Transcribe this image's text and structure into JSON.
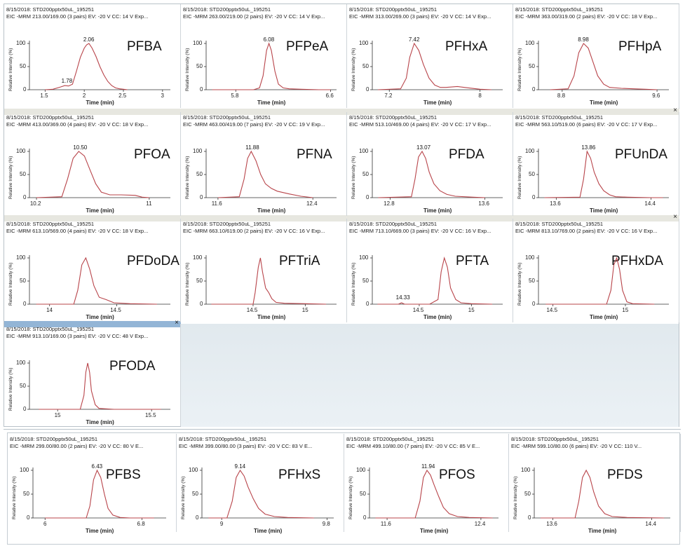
{
  "colors": {
    "trace": "#b8444a",
    "axis": "#333333",
    "close_bar_gray": "#e7e7e0",
    "close_bar_blue": "#93b5d6",
    "empty_area": "#e4ecf1"
  },
  "close_symbol": "×",
  "axis_labels": {
    "y": "Relative Intensity (%)",
    "x": "Time (min)"
  },
  "chart_data": [
    {
      "type": "line",
      "name": "PFBA",
      "header_line1": "8/15/2018: STD200pptx50uL_195251",
      "header_line2": "EIC -MRM 213.00/169.00 (3 pairs) EV: -20 V CC: 14 V Exp...",
      "xlim": [
        1.3,
        3.1
      ],
      "xticks": [
        1.5,
        2,
        2.5,
        3
      ],
      "xtick_labels": [
        "1.5",
        "2",
        "2.5",
        "3"
      ],
      "ylim": [
        0,
        100
      ],
      "yticks": [
        0,
        50,
        100
      ],
      "peak_labels": [
        {
          "text": "2.06",
          "x": 2.06,
          "y": 100
        },
        {
          "text": "1.78",
          "x": 1.78,
          "y": 10
        }
      ],
      "series": {
        "x": [
          1.5,
          1.6,
          1.7,
          1.75,
          1.8,
          1.85,
          1.9,
          1.95,
          2.0,
          2.03,
          2.06,
          2.1,
          2.15,
          2.2,
          2.25,
          2.3,
          2.35,
          2.4,
          2.45,
          2.5,
          2.55
        ],
        "y": [
          0,
          1,
          6,
          9,
          8,
          12,
          40,
          70,
          90,
          97,
          100,
          90,
          72,
          50,
          32,
          18,
          9,
          4,
          2,
          1,
          0
        ]
      }
    },
    {
      "type": "line",
      "name": "PFPeA",
      "header_line1": "8/15/2018: STD200pptx50uL_195251",
      "header_line2": "EIC -MRM 263.00/219.00 (2 pairs) EV: -20 V CC: 14 V Exp...",
      "xlim": [
        5.55,
        6.65
      ],
      "xticks": [
        5.8,
        6.6
      ],
      "xtick_labels": [
        "5.8",
        "6.6"
      ],
      "ylim": [
        0,
        100
      ],
      "yticks": [
        0,
        50,
        100
      ],
      "peak_labels": [
        {
          "text": "6.08",
          "x": 6.08,
          "y": 100
        }
      ],
      "series": {
        "x": [
          5.6,
          5.95,
          6.0,
          6.03,
          6.06,
          6.08,
          6.1,
          6.13,
          6.16,
          6.2,
          6.25,
          6.35,
          6.5,
          6.6
        ],
        "y": [
          0,
          0,
          4,
          30,
          85,
          100,
          85,
          40,
          12,
          4,
          2,
          1,
          0,
          0
        ]
      }
    },
    {
      "type": "line",
      "name": "PFHxA",
      "header_line1": "8/15/2018: STD200pptx50uL_195251",
      "header_line2": "EIC -MRM 313.00/269.00 (3 pairs) EV: -20 V CC: 14 V Exp...",
      "xlim": [
        7.05,
        8.2
      ],
      "xticks": [
        7.2,
        8
      ],
      "xtick_labels": [
        "7.2",
        "8"
      ],
      "ylim": [
        0,
        100
      ],
      "yticks": [
        0,
        50,
        100
      ],
      "peak_labels": [
        {
          "text": "7.42",
          "x": 7.42,
          "y": 100
        }
      ],
      "series": {
        "x": [
          7.1,
          7.3,
          7.35,
          7.38,
          7.42,
          7.46,
          7.5,
          7.55,
          7.6,
          7.65,
          7.7,
          7.8,
          7.9,
          8.0,
          8.1
        ],
        "y": [
          0,
          2,
          25,
          70,
          100,
          85,
          55,
          25,
          10,
          5,
          5,
          7,
          4,
          1,
          0
        ]
      }
    },
    {
      "type": "line",
      "name": "PFHpA",
      "header_line1": "8/15/2018: STD200pptx50uL_195251",
      "header_line2": "EIC -MRM 363.00/319.00 (2 pairs) EV: -20 V CC: 18 V Exp...",
      "xlim": [
        8.6,
        9.7
      ],
      "xticks": [
        8.8,
        9.6
      ],
      "xtick_labels": [
        "8.8",
        "9.6"
      ],
      "ylim": [
        0,
        100
      ],
      "yticks": [
        0,
        50,
        100
      ],
      "peak_labels": [
        {
          "text": "8.98",
          "x": 8.98,
          "y": 100
        }
      ],
      "series": {
        "x": [
          8.7,
          8.85,
          8.9,
          8.94,
          8.98,
          9.02,
          9.06,
          9.1,
          9.15,
          9.2,
          9.3,
          9.4,
          9.5,
          9.6
        ],
        "y": [
          0,
          2,
          30,
          80,
          100,
          90,
          60,
          30,
          12,
          5,
          3,
          2,
          1,
          0
        ]
      }
    },
    {
      "type": "line",
      "name": "PFOA",
      "header_line1": "8/15/2018: STD200pptx50uL_195251",
      "header_line2": "EIC -MRM 413.00/369.00 (4 pairs) EV: -20 V CC: 18 V Exp...",
      "xlim": [
        10.15,
        11.15
      ],
      "xticks": [
        10.2,
        11
      ],
      "xtick_labels": [
        "10.2",
        "11"
      ],
      "ylim": [
        0,
        100
      ],
      "yticks": [
        0,
        50,
        100
      ],
      "peak_labels": [
        {
          "text": "10.50",
          "x": 10.5,
          "y": 100
        }
      ],
      "series": {
        "x": [
          10.2,
          10.38,
          10.42,
          10.46,
          10.5,
          10.54,
          10.58,
          10.62,
          10.66,
          10.72,
          10.8,
          10.9,
          10.95,
          11.0
        ],
        "y": [
          0,
          2,
          40,
          85,
          100,
          90,
          60,
          30,
          12,
          6,
          6,
          5,
          1,
          0
        ]
      }
    },
    {
      "type": "line",
      "name": "PFNA",
      "header_line1": "8/15/2018: STD200pptx50uL_195251",
      "header_line2": "EIC -MRM 463.00/419.00 (7 pairs) EV: -20 V CC: 19 V Exp...",
      "xlim": [
        11.5,
        12.6
      ],
      "xticks": [
        11.6,
        12.4
      ],
      "xtick_labels": [
        "11.6",
        "12.4"
      ],
      "ylim": [
        0,
        100
      ],
      "yticks": [
        0,
        50,
        100
      ],
      "peak_labels": [
        {
          "text": "11.88",
          "x": 11.88,
          "y": 100
        }
      ],
      "series": {
        "x": [
          11.6,
          11.78,
          11.82,
          11.85,
          11.88,
          11.92,
          11.96,
          12.0,
          12.05,
          12.1,
          12.2,
          12.3,
          12.4
        ],
        "y": [
          0,
          2,
          40,
          85,
          100,
          80,
          50,
          30,
          20,
          14,
          8,
          3,
          0
        ]
      }
    },
    {
      "type": "line",
      "name": "PFDA",
      "header_line1": "8/15/2018: STD200pptx50uL_195251",
      "header_line2": "EIC -MRM 513.10/469.00 (4 pairs) EV: -20 V CC: 17 V Exp...",
      "xlim": [
        12.65,
        13.75
      ],
      "xticks": [
        12.8,
        13.6
      ],
      "xtick_labels": [
        "12.8",
        "13.6"
      ],
      "ylim": [
        0,
        100
      ],
      "yticks": [
        0,
        50,
        100
      ],
      "peak_labels": [
        {
          "text": "13.07",
          "x": 13.07,
          "y": 100
        }
      ],
      "series": {
        "x": [
          12.7,
          12.98,
          13.01,
          13.04,
          13.07,
          13.1,
          13.13,
          13.17,
          13.22,
          13.28,
          13.35,
          13.5,
          13.6
        ],
        "y": [
          0,
          2,
          40,
          88,
          100,
          85,
          55,
          30,
          15,
          7,
          3,
          1,
          0
        ]
      }
    },
    {
      "type": "line",
      "name": "PFUnDA",
      "header_line1": "8/15/2018: STD200pptx50uL_195251",
      "header_line2": "EIC -MRM 563.10/519.00 (6 pairs) EV: -20 V CC: 17 V Exp...",
      "xlim": [
        13.45,
        14.55
      ],
      "xticks": [
        13.6,
        14.4
      ],
      "xtick_labels": [
        "13.6",
        "14.4"
      ],
      "ylim": [
        0,
        100
      ],
      "yticks": [
        0,
        50,
        100
      ],
      "peak_labels": [
        {
          "text": "13.86",
          "x": 13.86,
          "y": 100
        }
      ],
      "series": {
        "x": [
          13.5,
          13.8,
          13.83,
          13.86,
          13.89,
          13.92,
          13.96,
          14.0,
          14.05,
          14.1,
          14.2,
          14.4,
          14.5
        ],
        "y": [
          0,
          1,
          40,
          100,
          85,
          55,
          30,
          15,
          6,
          2,
          1,
          0,
          0
        ]
      }
    },
    {
      "type": "line",
      "name": "PFDoDA",
      "header_line1": "8/15/2018: STD200pptx50uL_195251",
      "header_line2": "EIC -MRM 613.10/569.00 (4 pairs) EV: -20 V CC: 18 V Exp...",
      "xlim": [
        13.85,
        14.9
      ],
      "xticks": [
        14,
        14.5
      ],
      "xtick_labels": [
        "14",
        "14.5"
      ],
      "ylim": [
        0,
        100
      ],
      "yticks": [
        0,
        50,
        100
      ],
      "peak_labels": [],
      "series": {
        "x": [
          13.9,
          14.18,
          14.21,
          14.24,
          14.27,
          14.3,
          14.33,
          14.37,
          14.42,
          14.48,
          14.6,
          14.8
        ],
        "y": [
          0,
          0,
          30,
          85,
          100,
          75,
          40,
          15,
          10,
          3,
          1,
          0
        ]
      }
    },
    {
      "type": "line",
      "name": "PFTriA",
      "header_line1": "8/15/2018: STD200pptx50uL_195251",
      "header_line2": "EIC -MRM 663.10/619.00 (2 pairs) EV: -20 V CC: 16 V Exp...",
      "xlim": [
        14.05,
        15.3
      ],
      "xticks": [
        14.5,
        15
      ],
      "xtick_labels": [
        "14.5",
        "15"
      ],
      "ylim": [
        0,
        100
      ],
      "yticks": [
        0,
        50,
        100
      ],
      "peak_labels": [],
      "series": {
        "x": [
          14.1,
          14.5,
          14.52,
          14.55,
          14.57,
          14.59,
          14.62,
          14.65,
          14.68,
          14.72,
          14.8,
          15.0,
          15.2
        ],
        "y": [
          0,
          0,
          25,
          80,
          100,
          70,
          35,
          25,
          12,
          4,
          2,
          1,
          0
        ]
      }
    },
    {
      "type": "line",
      "name": "PFTA",
      "header_line1": "8/15/2018: STD200pptx50uL_195251",
      "header_line2": "EIC -MRM 713.10/669.00 (3 pairs) EV: -20 V CC: 16 V Exp...",
      "xlim": [
        14.05,
        15.3
      ],
      "xticks": [
        14.5,
        15
      ],
      "xtick_labels": [
        "14.5",
        "15"
      ],
      "ylim": [
        0,
        100
      ],
      "yticks": [
        0,
        50,
        100
      ],
      "peak_labels": [
        {
          "text": "14.33",
          "x": 14.33,
          "y": 6
        }
      ],
      "series": {
        "x": [
          14.1,
          14.3,
          14.33,
          14.36,
          14.6,
          14.68,
          14.71,
          14.74,
          14.77,
          14.8,
          14.85,
          14.9,
          15.0,
          15.2
        ],
        "y": [
          0,
          0,
          3,
          0,
          0,
          10,
          70,
          100,
          80,
          35,
          10,
          3,
          1,
          0
        ]
      }
    },
    {
      "type": "line",
      "name": "PFHxDA",
      "header_line1": "8/15/2018: STD200pptx50uL_195251",
      "header_line2": "EIC -MRM 813.10/769.00 (2 pairs) EV: -20 V CC: 16 V Exp...",
      "xlim": [
        14.4,
        15.3
      ],
      "xticks": [
        14.5,
        15
      ],
      "xtick_labels": [
        "14.5",
        "15"
      ],
      "ylim": [
        0,
        100
      ],
      "yticks": [
        0,
        50,
        100
      ],
      "peak_labels": [],
      "series": {
        "x": [
          14.45,
          14.87,
          14.9,
          14.92,
          14.94,
          14.96,
          14.98,
          15.01,
          15.05,
          15.2
        ],
        "y": [
          0,
          0,
          30,
          85,
          100,
          75,
          30,
          5,
          1,
          0
        ]
      }
    },
    {
      "type": "line",
      "name": "PFODA",
      "header_line1": "8/15/2018: STD200pptx50uL_195251",
      "header_line2": "EIC -MRM 913.10/169.00 (3 pairs) EV: -20 V CC: 48 V Exp...",
      "xlim": [
        14.85,
        15.6
      ],
      "xticks": [
        15,
        15.5
      ],
      "xtick_labels": [
        "15",
        "15.5"
      ],
      "ylim": [
        0,
        100
      ],
      "yticks": [
        0,
        50,
        100
      ],
      "peak_labels": [],
      "series": {
        "x": [
          14.9,
          15.12,
          15.14,
          15.15,
          15.16,
          15.17,
          15.18,
          15.2,
          15.22,
          15.3,
          15.55
        ],
        "y": [
          0,
          0,
          30,
          80,
          100,
          80,
          40,
          10,
          2,
          0,
          0
        ]
      }
    },
    {
      "type": "line",
      "name": "PFBS",
      "header_line1": "8/15/2018: STD200pptx50uL_195251",
      "header_line2": "EIC -MRM 299.00/80.00 (2 pairs) EV: -20 V CC: 80 V E...",
      "xlim": [
        5.9,
        7.0
      ],
      "xticks": [
        6,
        6.8
      ],
      "xtick_labels": [
        "6",
        "6.8"
      ],
      "ylim": [
        0,
        100
      ],
      "yticks": [
        0,
        50,
        100
      ],
      "peak_labels": [
        {
          "text": "6.43",
          "x": 6.43,
          "y": 100
        }
      ],
      "series": {
        "x": [
          6.0,
          6.34,
          6.37,
          6.4,
          6.43,
          6.46,
          6.49,
          6.52,
          6.56,
          6.62,
          6.7,
          6.9
        ],
        "y": [
          0,
          0,
          25,
          80,
          100,
          85,
          50,
          20,
          6,
          1,
          0,
          0
        ]
      }
    },
    {
      "type": "line",
      "name": "PFHxS",
      "header_line1": "8/15/2018: STD200pptx50uL_195251",
      "header_line2": "EIC -MRM 399.00/80.00 (3 pairs) EV: -20 V CC: 83 V E...",
      "xlim": [
        8.85,
        9.85
      ],
      "xticks": [
        9,
        9.8
      ],
      "xtick_labels": [
        "9",
        "9.8"
      ],
      "ylim": [
        0,
        100
      ],
      "yticks": [
        0,
        50,
        100
      ],
      "peak_labels": [
        {
          "text": "9.14",
          "x": 9.14,
          "y": 100
        }
      ],
      "series": {
        "x": [
          8.9,
          9.04,
          9.08,
          9.11,
          9.14,
          9.17,
          9.2,
          9.24,
          9.28,
          9.33,
          9.4,
          9.5,
          9.7
        ],
        "y": [
          0,
          0,
          35,
          85,
          100,
          88,
          65,
          40,
          20,
          8,
          3,
          1,
          0
        ]
      }
    },
    {
      "type": "line",
      "name": "PFOS",
      "header_line1": "8/15/2018: STD200pptx50uL_195251",
      "header_line2": "EIC -MRM 499.10/80.00 (7 pairs) EV: -20 V CC: 85 V E...",
      "xlim": [
        11.45,
        12.55
      ],
      "xticks": [
        11.6,
        12.4
      ],
      "xtick_labels": [
        "11.6",
        "12.4"
      ],
      "ylim": [
        0,
        100
      ],
      "yticks": [
        0,
        50,
        100
      ],
      "peak_labels": [
        {
          "text": "11.94",
          "x": 11.94,
          "y": 100
        }
      ],
      "series": {
        "x": [
          11.5,
          11.84,
          11.88,
          11.91,
          11.94,
          11.97,
          12.0,
          12.04,
          12.08,
          12.13,
          12.2,
          12.3,
          12.5
        ],
        "y": [
          0,
          0,
          35,
          85,
          100,
          90,
          70,
          45,
          22,
          9,
          3,
          1,
          0
        ]
      }
    },
    {
      "type": "line",
      "name": "PFDS",
      "header_line1": "8/15/2018: STD200pptx50uL_195251",
      "header_line2": "EIC -MRM 599.10/80.00 (6 pairs) EV: -20 V CC: 110 V...",
      "xlim": [
        13.45,
        14.55
      ],
      "xticks": [
        13.6,
        14.4
      ],
      "xtick_labels": [
        "13.6",
        "14.4"
      ],
      "ylim": [
        0,
        100
      ],
      "yticks": [
        0,
        50,
        100
      ],
      "peak_labels": [],
      "series": {
        "x": [
          13.5,
          13.78,
          13.81,
          13.84,
          13.87,
          13.9,
          13.93,
          13.97,
          14.02,
          14.08,
          14.2,
          14.5
        ],
        "y": [
          0,
          0,
          35,
          85,
          100,
          85,
          55,
          25,
          9,
          3,
          1,
          0
        ]
      }
    }
  ]
}
